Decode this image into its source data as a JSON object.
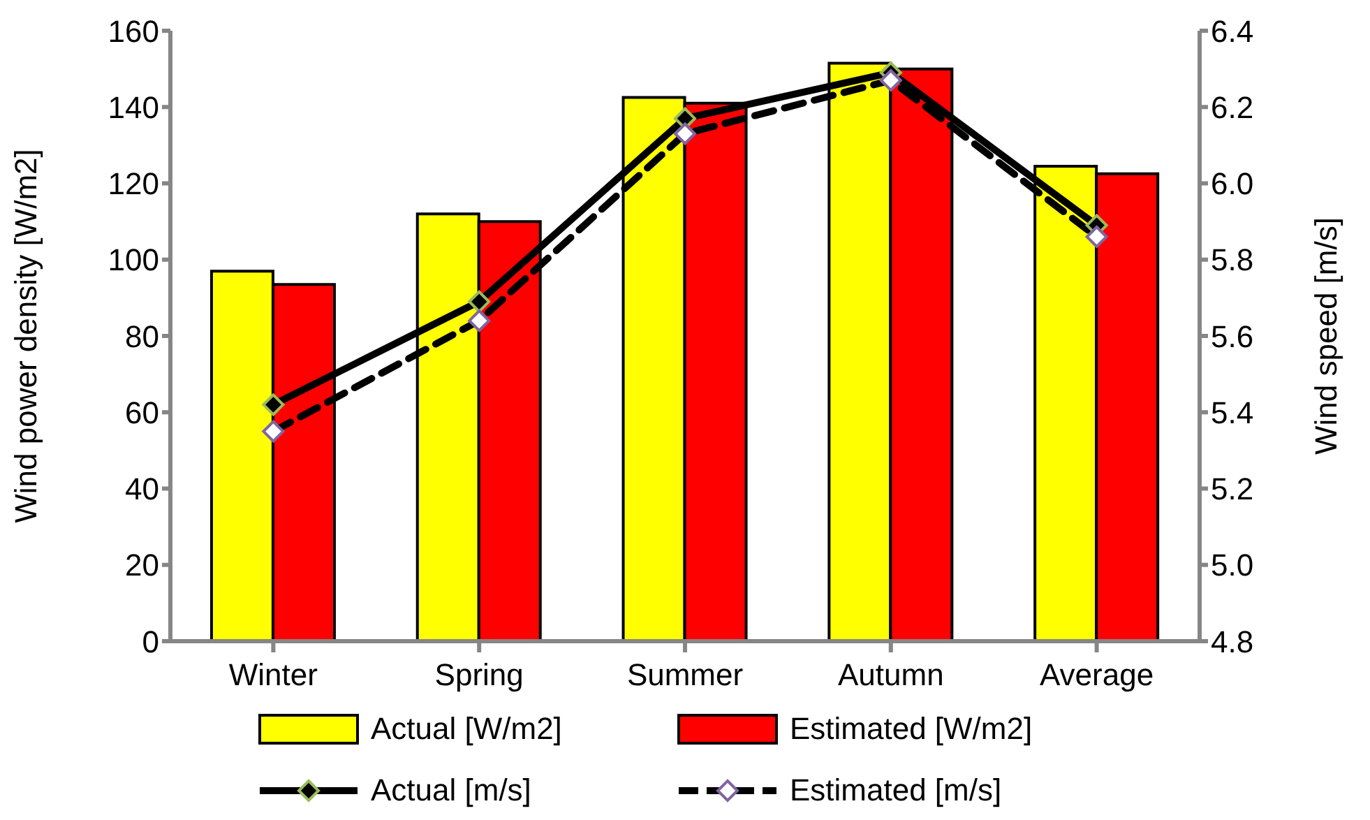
{
  "chart_data": {
    "type": "bar",
    "categories": [
      "Winter",
      "Spring",
      "Summer",
      "Autumn",
      "Average"
    ],
    "ylabel": "Wind power density [W/m2]",
    "y2label": "Wind speed [m/s]",
    "ylim": [
      0,
      160
    ],
    "yticks": [
      0,
      20,
      40,
      60,
      80,
      100,
      120,
      140,
      160
    ],
    "y2lim": [
      4.8,
      6.4
    ],
    "y2ticks": [
      {
        "value": 4.8,
        "label": "4.8"
      },
      {
        "value": 5.0,
        "label": "5.0"
      },
      {
        "value": 5.2,
        "label": "5.2"
      },
      {
        "value": 5.4,
        "label": "5.4"
      },
      {
        "value": 5.6,
        "label": "5.6"
      },
      {
        "value": 5.8,
        "label": "5.8"
      },
      {
        "value": 6.0,
        "label": "6.0"
      },
      {
        "value": 6.2,
        "label": "6.2"
      },
      {
        "value": 6.4,
        "label": "6.4"
      }
    ],
    "grid": false,
    "legend": "bottom",
    "marker": "diamond",
    "series": [
      {
        "name": "Actual [W/m2]",
        "color": "#ffff00",
        "values": [
          97,
          112,
          142.5,
          151.5,
          124.5
        ]
      },
      {
        "name": "Estimated [W/m2]",
        "color": "#ff0000",
        "values": [
          93.5,
          110,
          141,
          150,
          122.5
        ]
      },
      {
        "name": "Actual [m/s]",
        "type": "line",
        "axis": "y2",
        "color": "#000000",
        "line_style": "solid",
        "values": [
          5.42,
          5.69,
          6.17,
          6.29,
          5.89
        ]
      },
      {
        "name": "Estimated [m/s]",
        "type": "line",
        "axis": "y2",
        "color": "#000000",
        "line_style": "dashed",
        "values": [
          5.35,
          5.64,
          6.13,
          6.27,
          5.86
        ]
      }
    ]
  }
}
